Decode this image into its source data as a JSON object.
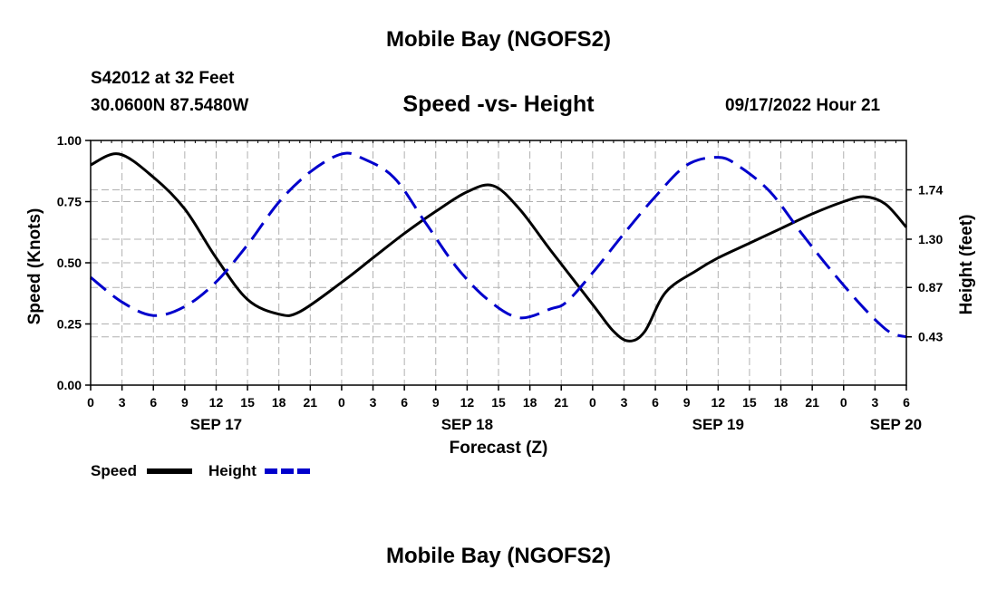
{
  "page": {
    "title": "Mobile Bay (NGOFS2)",
    "station": "S42012 at 32 Feet",
    "coordinates": "30.0600N  87.5480W",
    "chart_title": "Speed -vs- Height",
    "run_time": "09/17/2022 Hour 21",
    "footer_title": "Mobile Bay (NGOFS2)"
  },
  "colors": {
    "speed": "#000000",
    "height": "#0000cc",
    "grid": "#b0b0b0"
  },
  "chart_data": {
    "type": "line",
    "title": "Speed -vs- Height",
    "xlabel": "Forecast (Z)",
    "ylabel": "Speed (Knots)",
    "y2label": "Height (feet)",
    "x_unit": "hours from 0Z SEP 17",
    "xlim": [
      0,
      78
    ],
    "ylim": [
      0,
      1.0
    ],
    "y2lim": [
      0.0,
      2.18
    ],
    "x_ticks": [
      0,
      3,
      6,
      9,
      12,
      15,
      18,
      21,
      24,
      27,
      30,
      33,
      36,
      39,
      42,
      45,
      48,
      51,
      54,
      57,
      60,
      63,
      66,
      69,
      72,
      75,
      78
    ],
    "x_tick_labels": [
      "0",
      "3",
      "6",
      "9",
      "12",
      "15",
      "18",
      "21",
      "0",
      "3",
      "6",
      "9",
      "12",
      "15",
      "18",
      "21",
      "0",
      "3",
      "6",
      "9",
      "12",
      "15",
      "18",
      "21",
      "0",
      "3",
      "6"
    ],
    "date_labels": [
      {
        "x": 12,
        "label": "SEP 17"
      },
      {
        "x": 36,
        "label": "SEP 18"
      },
      {
        "x": 60,
        "label": "SEP 19"
      },
      {
        "x": 77,
        "label": "SEP 20"
      }
    ],
    "y_ticks": [
      0.0,
      0.25,
      0.5,
      0.75,
      1.0
    ],
    "y_tick_labels": [
      "0.00",
      "0.25",
      "0.50",
      "0.75",
      "1.00"
    ],
    "y2_ticks": [
      0.43,
      0.87,
      1.3,
      1.74
    ],
    "y2_tick_labels": [
      "0.43",
      "0.87",
      "1.30",
      "1.74"
    ],
    "grid": true,
    "legend": "bottom-left",
    "series": [
      {
        "name": "Speed",
        "axis": "left",
        "style": "solid",
        "x": [
          0,
          2.7,
          6,
          9,
          12,
          15,
          18,
          20,
          24,
          27,
          30,
          33,
          36,
          38.5,
          41,
          44,
          48,
          50,
          51.5,
          53,
          55,
          58,
          60,
          63,
          66,
          69,
          72,
          74,
          76,
          78
        ],
        "values": [
          0.9,
          0.945,
          0.85,
          0.72,
          0.52,
          0.35,
          0.29,
          0.3,
          0.42,
          0.52,
          0.62,
          0.71,
          0.79,
          0.815,
          0.72,
          0.55,
          0.33,
          0.22,
          0.18,
          0.22,
          0.38,
          0.47,
          0.52,
          0.58,
          0.64,
          0.7,
          0.75,
          0.77,
          0.74,
          0.645
        ]
      },
      {
        "name": "Height",
        "axis": "right",
        "style": "dashed",
        "x": [
          0,
          3,
          6,
          9,
          12,
          15,
          18,
          21,
          24,
          26,
          29,
          32,
          35,
          38,
          41,
          44,
          45.5,
          48,
          51,
          54,
          57,
          60,
          62,
          65,
          68,
          71,
          74,
          76,
          77,
          78
        ],
        "values": [
          0.96,
          0.74,
          0.62,
          0.7,
          0.92,
          1.25,
          1.63,
          1.9,
          2.06,
          2.02,
          1.85,
          1.45,
          1.05,
          0.76,
          0.6,
          0.68,
          0.74,
          1.0,
          1.35,
          1.68,
          1.96,
          2.03,
          1.95,
          1.72,
          1.35,
          1.0,
          0.68,
          0.5,
          0.45,
          0.43
        ]
      }
    ]
  }
}
